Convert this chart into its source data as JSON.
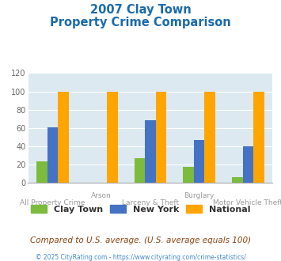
{
  "title_line1": "2007 Clay Town",
  "title_line2": "Property Crime Comparison",
  "clay_town": [
    23,
    0,
    27,
    17,
    6
  ],
  "new_york": [
    61,
    0,
    68,
    47,
    40
  ],
  "national": [
    100,
    100,
    100,
    100,
    100
  ],
  "clay_color": "#7cbb3c",
  "ny_color": "#4472c4",
  "nat_color": "#ffa500",
  "ylim": [
    0,
    120
  ],
  "yticks": [
    0,
    20,
    40,
    60,
    80,
    100,
    120
  ],
  "plot_bg": "#dce9f0",
  "footer_text": "Compared to U.S. average. (U.S. average equals 100)",
  "copyright_text": "© 2025 CityRating.com - https://www.cityrating.com/crime-statistics/",
  "legend_labels": [
    "Clay Town",
    "New York",
    "National"
  ],
  "top_labels": [
    "",
    "Arson",
    "",
    "Burglary",
    ""
  ],
  "bottom_labels": [
    "All Property Crime",
    "",
    "Larceny & Theft",
    "",
    "Motor Vehicle Theft"
  ]
}
